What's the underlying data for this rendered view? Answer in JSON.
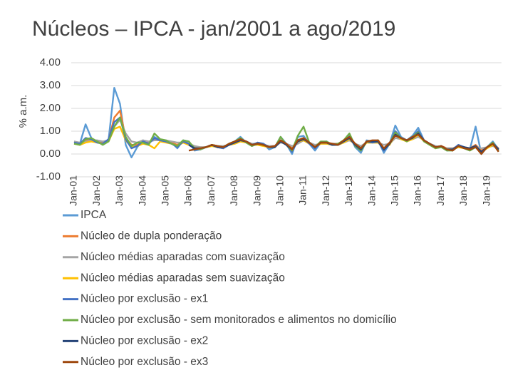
{
  "chart_data": {
    "type": "line",
    "title": "Núcleos – IPCA   - jan/2001 a ago/2019",
    "y_label": "% a.m.",
    "ylim": [
      -1,
      4
    ],
    "yticks": [
      {
        "value": -1,
        "label": "-1.00"
      },
      {
        "value": 0,
        "label": "0.00"
      },
      {
        "value": 1,
        "label": "1.00"
      },
      {
        "value": 2,
        "label": "2.00"
      },
      {
        "value": 3,
        "label": "3.00"
      },
      {
        "value": 4,
        "label": "4.00"
      }
    ],
    "grid": true,
    "legend": "bottom",
    "categories": [
      "Jan-01",
      null,
      null,
      null,
      "Jan-02",
      null,
      null,
      null,
      "Jan-03",
      null,
      null,
      null,
      "Jan-04",
      null,
      null,
      null,
      "Jan-05",
      null,
      null,
      null,
      "Jan-06",
      null,
      null,
      null,
      "Jan-07",
      null,
      null,
      null,
      "Jan-08",
      null,
      null,
      null,
      "Jan-09",
      null,
      null,
      null,
      "Jan-10",
      null,
      null,
      null,
      "Jan-11",
      null,
      null,
      null,
      "Jan-12",
      null,
      null,
      null,
      "Jan-13",
      null,
      null,
      null,
      "Jan-14",
      null,
      null,
      null,
      "Jan-15",
      null,
      null,
      null,
      "Jan-16",
      null,
      null,
      null,
      "Jan-17",
      null,
      null,
      null,
      "Jan-18",
      null,
      null,
      null,
      "Jan-19",
      null,
      null
    ],
    "series": [
      {
        "name": "IPCA",
        "color": "#5b9bd5",
        "values": [
          0.55,
          0.45,
          1.3,
          0.7,
          0.55,
          0.45,
          0.6,
          2.9,
          2.2,
          0.4,
          -0.15,
          0.3,
          0.6,
          0.45,
          0.75,
          0.6,
          0.55,
          0.5,
          0.25,
          0.6,
          0.55,
          0.15,
          0.2,
          0.3,
          0.4,
          0.3,
          0.25,
          0.4,
          0.55,
          0.75,
          0.5,
          0.35,
          0.5,
          0.45,
          0.2,
          0.3,
          0.75,
          0.45,
          0.0,
          0.75,
          0.8,
          0.45,
          0.15,
          0.5,
          0.55,
          0.4,
          0.4,
          0.6,
          0.85,
          0.3,
          0.05,
          0.6,
          0.55,
          0.6,
          0.05,
          0.45,
          1.25,
          0.75,
          0.6,
          0.8,
          1.15,
          0.6,
          0.45,
          0.3,
          0.35,
          0.15,
          0.2,
          0.4,
          0.3,
          0.2,
          1.2,
          0.0,
          0.3,
          0.55,
          0.2
        ]
      },
      {
        "name": "Núcleo de dupla ponderação",
        "color": "#ed7d31",
        "values": [
          0.5,
          0.45,
          0.6,
          0.65,
          0.55,
          0.5,
          0.6,
          1.6,
          1.9,
          0.7,
          0.4,
          0.4,
          0.55,
          0.5,
          0.65,
          0.6,
          0.55,
          0.5,
          0.4,
          0.55,
          0.45,
          0.3,
          0.3,
          0.3,
          0.4,
          0.35,
          0.3,
          0.4,
          0.5,
          0.6,
          0.55,
          0.4,
          0.45,
          0.4,
          0.35,
          0.35,
          0.6,
          0.45,
          0.25,
          0.6,
          0.7,
          0.5,
          0.35,
          0.5,
          0.5,
          0.45,
          0.45,
          0.55,
          0.7,
          0.45,
          0.25,
          0.55,
          0.55,
          0.55,
          0.25,
          0.45,
          0.9,
          0.7,
          0.6,
          0.7,
          0.9,
          0.6,
          0.45,
          0.3,
          0.35,
          0.25,
          0.25,
          0.35,
          0.3,
          0.25,
          0.4,
          0.15,
          0.3,
          0.45,
          0.25
        ]
      },
      {
        "name": "Núcleo médias aparadas com suavização",
        "color": "#a5a5a5",
        "values": [
          0.55,
          0.5,
          0.55,
          0.6,
          0.6,
          0.55,
          0.6,
          1.2,
          1.5,
          0.9,
          0.55,
          0.5,
          0.6,
          0.55,
          0.6,
          0.6,
          0.6,
          0.55,
          0.5,
          0.5,
          0.45,
          0.35,
          0.3,
          0.3,
          0.35,
          0.35,
          0.35,
          0.4,
          0.45,
          0.55,
          0.55,
          0.45,
          0.45,
          0.4,
          0.35,
          0.35,
          0.5,
          0.45,
          0.35,
          0.45,
          0.6,
          0.5,
          0.4,
          0.45,
          0.45,
          0.45,
          0.45,
          0.5,
          0.6,
          0.45,
          0.35,
          0.5,
          0.5,
          0.5,
          0.4,
          0.45,
          0.7,
          0.65,
          0.6,
          0.65,
          0.75,
          0.6,
          0.45,
          0.35,
          0.3,
          0.25,
          0.25,
          0.3,
          0.3,
          0.25,
          0.3,
          0.25,
          0.3,
          0.35,
          0.25
        ]
      },
      {
        "name": "Núcleo médias aparadas sem suavização",
        "color": "#ffc000",
        "values": [
          0.45,
          0.4,
          0.5,
          0.55,
          0.5,
          0.45,
          0.55,
          1.1,
          1.2,
          0.6,
          0.3,
          0.35,
          0.45,
          0.4,
          0.25,
          0.55,
          0.5,
          0.45,
          0.35,
          0.5,
          0.4,
          0.25,
          0.25,
          0.3,
          0.35,
          0.3,
          0.3,
          0.4,
          0.45,
          0.55,
          0.5,
          0.4,
          0.4,
          0.35,
          0.3,
          0.3,
          0.55,
          0.4,
          0.2,
          0.55,
          0.6,
          0.45,
          0.3,
          0.45,
          0.45,
          0.4,
          0.4,
          0.5,
          0.65,
          0.4,
          0.2,
          0.5,
          0.5,
          0.5,
          0.25,
          0.4,
          0.85,
          0.65,
          0.55,
          0.65,
          0.85,
          0.55,
          0.4,
          0.25,
          0.3,
          0.2,
          0.2,
          0.3,
          0.25,
          0.2,
          0.35,
          0.1,
          0.25,
          0.4,
          0.2
        ]
      },
      {
        "name": "Núcleo por exclusão - ex1",
        "color": "#4472c4",
        "values": [
          0.5,
          0.45,
          0.7,
          0.65,
          0.5,
          0.45,
          0.65,
          1.4,
          1.6,
          0.65,
          0.25,
          0.35,
          0.55,
          0.45,
          0.7,
          0.6,
          0.55,
          0.45,
          0.3,
          0.55,
          0.45,
          0.2,
          0.2,
          0.3,
          0.4,
          0.3,
          0.25,
          0.4,
          0.55,
          0.65,
          0.55,
          0.4,
          0.5,
          0.45,
          0.3,
          0.35,
          0.6,
          0.4,
          0.1,
          0.6,
          0.7,
          0.45,
          0.25,
          0.5,
          0.5,
          0.4,
          0.4,
          0.55,
          0.75,
          0.35,
          0.15,
          0.55,
          0.5,
          0.55,
          0.15,
          0.45,
          1.0,
          0.7,
          0.6,
          0.75,
          1.0,
          0.6,
          0.45,
          0.3,
          0.35,
          0.2,
          0.2,
          0.4,
          0.3,
          0.2,
          0.35,
          0.05,
          0.3,
          0.5,
          0.2
        ]
      },
      {
        "name": "Núcleo por exclusão - sem monitorados e alimentos no domicílio",
        "color": "#70ad47",
        "values": [
          0.45,
          0.4,
          0.65,
          0.7,
          0.55,
          0.4,
          0.55,
          1.2,
          1.6,
          0.75,
          0.35,
          0.5,
          0.5,
          0.4,
          0.9,
          0.65,
          0.6,
          0.45,
          0.35,
          0.6,
          0.55,
          0.25,
          0.2,
          0.3,
          0.4,
          0.35,
          0.3,
          0.45,
          0.55,
          0.7,
          0.5,
          0.35,
          0.45,
          0.4,
          0.3,
          0.3,
          0.75,
          0.4,
          0.15,
          0.8,
          1.2,
          0.5,
          0.3,
          0.55,
          0.55,
          0.4,
          0.45,
          0.6,
          0.9,
          0.35,
          0.15,
          0.55,
          0.55,
          0.6,
          0.2,
          0.45,
          0.95,
          0.7,
          0.55,
          0.75,
          0.95,
          0.55,
          0.4,
          0.25,
          0.3,
          0.15,
          0.15,
          0.35,
          0.25,
          0.15,
          0.3,
          0.05,
          0.3,
          0.5,
          0.15
        ]
      },
      {
        "name": "Núcleo por exclusão - ex2",
        "color": "#264478",
        "values": [
          null,
          null,
          null,
          null,
          null,
          null,
          null,
          null,
          null,
          null,
          null,
          null,
          null,
          null,
          null,
          null,
          null,
          null,
          null,
          null,
          0.4,
          0.25,
          0.25,
          0.3,
          0.4,
          0.3,
          0.3,
          0.4,
          0.5,
          0.6,
          0.55,
          0.4,
          0.45,
          0.4,
          0.3,
          0.3,
          0.55,
          0.4,
          0.2,
          0.55,
          0.65,
          0.5,
          0.3,
          0.5,
          0.5,
          0.4,
          0.4,
          0.55,
          0.7,
          0.4,
          0.2,
          0.55,
          0.55,
          0.55,
          0.2,
          0.45,
          0.85,
          0.7,
          0.6,
          0.7,
          0.9,
          0.6,
          0.45,
          0.3,
          0.35,
          0.2,
          0.2,
          0.35,
          0.3,
          0.25,
          0.35,
          0.1,
          0.3,
          0.45,
          0.2
        ]
      },
      {
        "name": "Núcleo por exclusão - ex3",
        "color": "#9e480e",
        "values": [
          null,
          null,
          null,
          null,
          null,
          null,
          null,
          null,
          null,
          null,
          null,
          null,
          null,
          null,
          null,
          null,
          null,
          null,
          null,
          null,
          0.15,
          0.2,
          0.25,
          0.3,
          0.4,
          0.35,
          0.3,
          0.45,
          0.55,
          0.65,
          0.55,
          0.4,
          0.45,
          0.4,
          0.3,
          0.35,
          0.6,
          0.45,
          0.2,
          0.6,
          0.7,
          0.5,
          0.3,
          0.5,
          0.5,
          0.45,
          0.4,
          0.6,
          0.75,
          0.45,
          0.25,
          0.55,
          0.6,
          0.6,
          0.25,
          0.5,
          0.8,
          0.7,
          0.6,
          0.75,
          0.85,
          0.6,
          0.45,
          0.3,
          0.35,
          0.2,
          0.15,
          0.35,
          0.25,
          0.2,
          0.3,
          0.0,
          0.3,
          0.45,
          0.1
        ]
      }
    ]
  }
}
